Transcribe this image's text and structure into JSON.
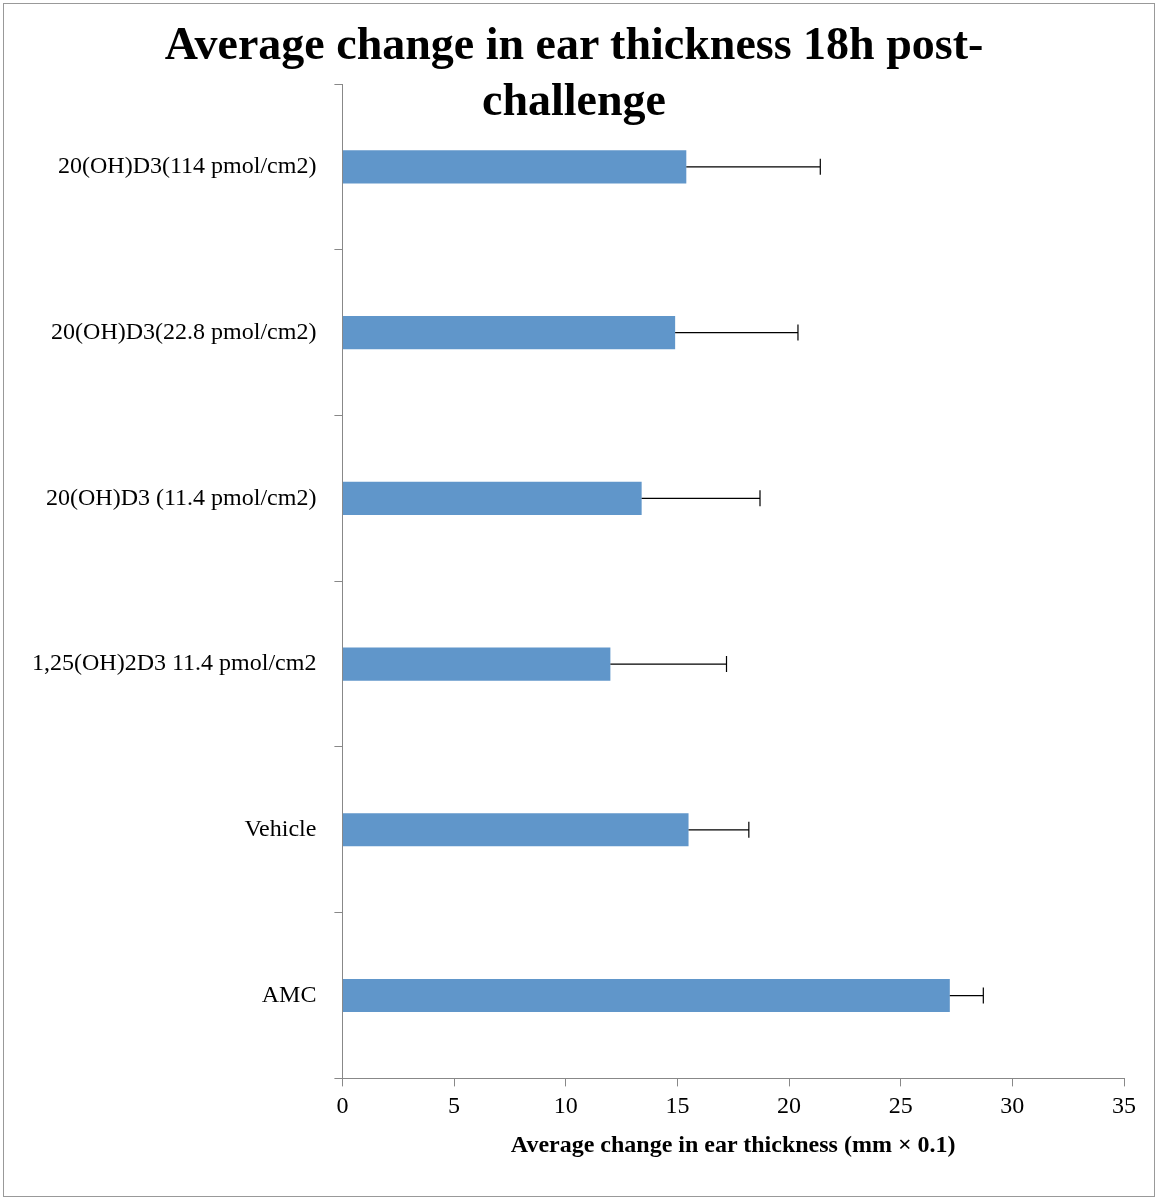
{
  "chart_data": {
    "type": "bar",
    "orientation": "horizontal",
    "title": "Average change in ear thickness 18h post-challenge",
    "xlabel": "Average change in ear thickness (mm × 0.1)",
    "categories": [
      "20(OH)D3(114 pmol/cm2)",
      "20(OH)D3(22.8 pmol/cm2)",
      "20(OH)D3 (11.4 pmol/cm2)",
      "1,25(OH)2D3 11.4 pmol/cm2",
      "Vehicle",
      "AMC"
    ],
    "values": [
      15.4,
      14.9,
      13.4,
      12.0,
      15.5,
      27.2
    ],
    "errors": [
      [
        15.4,
        21.4
      ],
      [
        14.9,
        20.4
      ],
      [
        13.4,
        18.7
      ],
      [
        12.0,
        17.2
      ],
      [
        15.5,
        18.2
      ],
      [
        27.2,
        28.7
      ]
    ],
    "color": "#6096ca",
    "xlim": [
      0,
      35
    ],
    "xticks": [
      0,
      5,
      10,
      15,
      20,
      25,
      30,
      35
    ],
    "grid": false,
    "legend": false
  }
}
